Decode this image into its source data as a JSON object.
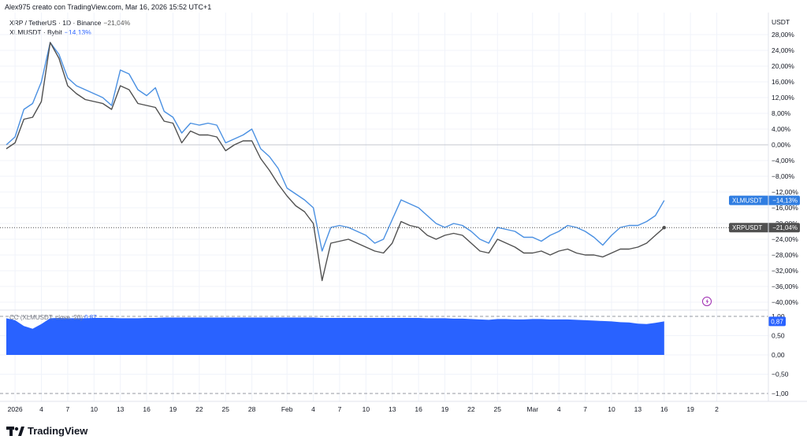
{
  "header": {
    "caption": "Alex975 creato con TradingView.com, Mar 16, 2026 15:52 UTC+1"
  },
  "legend": {
    "items": [
      {
        "symbol": "XRP / TetherUS · 1D · Binance",
        "value": "−21,04%"
      },
      {
        "symbol": "XLMUSDT · Bybit",
        "value": "−14,13%"
      }
    ]
  },
  "axis": {
    "unit": "USDT",
    "y_ticks": [
      "28,00%",
      "24,00%",
      "20,00%",
      "16,00%",
      "12,00%",
      "8,00%",
      "4,00%",
      "0,00%",
      "−4,00%",
      "−8,00%",
      "−12,00%",
      "−16,00%",
      "−20,00%",
      "−24,00%",
      "−28,00%",
      "−32,00%",
      "−36,00%",
      "−40,00%"
    ],
    "x_ticks": [
      "2026",
      "4",
      "7",
      "10",
      "13",
      "16",
      "19",
      "22",
      "25",
      "28",
      "Feb",
      "4",
      "7",
      "10",
      "13",
      "16",
      "19",
      "22",
      "25",
      "Mar",
      "4",
      "7",
      "10",
      "13",
      "16",
      "19",
      "2"
    ],
    "ind_ticks": [
      "1,00",
      "0,50",
      "0,00",
      "−0,50",
      "−1,00"
    ]
  },
  "price_labels": {
    "xlm": {
      "name": "XLMUSDT",
      "value": "−14,13%"
    },
    "xrp": {
      "name": "XRPUSDT",
      "value": "−21,04%"
    }
  },
  "indicator": {
    "label": "CC (XLMUSDT, close, 20)",
    "value": "0,87",
    "badge": "0,87"
  },
  "colors": {
    "xlm": "#4a90e2",
    "xrp": "#505050",
    "cc_fill": "#2962ff",
    "grid": "#f0f3fa"
  },
  "logo": {
    "text": "TradingView"
  },
  "chart_data": [
    {
      "type": "line",
      "x": [
        "Dec 31",
        "Jan 1",
        "Jan 2",
        "Jan 3",
        "Jan 4",
        "Jan 5",
        "Jan 6",
        "Jan 7",
        "Jan 8",
        "Jan 9",
        "Jan 10",
        "Jan 11",
        "Jan 12",
        "Jan 13",
        "Jan 14",
        "Jan 15",
        "Jan 16",
        "Jan 17",
        "Jan 18",
        "Jan 19",
        "Jan 20",
        "Jan 21",
        "Jan 22",
        "Jan 23",
        "Jan 24",
        "Jan 25",
        "Jan 26",
        "Jan 27",
        "Jan 28",
        "Jan 29",
        "Jan 30",
        "Jan 31",
        "Feb 1",
        "Feb 2",
        "Feb 3",
        "Feb 4",
        "Feb 5",
        "Feb 6",
        "Feb 7",
        "Feb 8",
        "Feb 9",
        "Feb 10",
        "Feb 11",
        "Feb 12",
        "Feb 13",
        "Feb 14",
        "Feb 15",
        "Feb 16",
        "Feb 17",
        "Feb 18",
        "Feb 19",
        "Feb 20",
        "Feb 21",
        "Feb 22",
        "Feb 23",
        "Feb 24",
        "Feb 25",
        "Feb 26",
        "Feb 27",
        "Feb 28",
        "Mar 1",
        "Mar 2",
        "Mar 3",
        "Mar 4",
        "Mar 5",
        "Mar 6",
        "Mar 7",
        "Mar 8",
        "Mar 9",
        "Mar 10",
        "Mar 11",
        "Mar 12",
        "Mar 13",
        "Mar 14",
        "Mar 15",
        "Mar 16"
      ],
      "series": [
        {
          "name": "XLMUSDT",
          "values": [
            0,
            2,
            9,
            10.5,
            16,
            26,
            23,
            17,
            15,
            14,
            13,
            12,
            10,
            19,
            18,
            14,
            12.5,
            14.5,
            8.5,
            7,
            3,
            5.5,
            5,
            5.5,
            5,
            0.5,
            1.5,
            2.5,
            4,
            -1,
            -3,
            -6,
            -11,
            -12.5,
            -14,
            -16,
            -27,
            -21,
            -20.5,
            -21,
            -22,
            -23,
            -25,
            -24,
            -19,
            -14,
            -15,
            -16,
            -18,
            -20,
            -21,
            -20,
            -20.5,
            -22,
            -24,
            -25,
            -21,
            -21.5,
            -22,
            -23.5,
            -23.5,
            -24.5,
            -23,
            -22,
            -20.5,
            -21,
            -22,
            -23.5,
            -25.5,
            -23,
            -21,
            -20.5,
            -20.5,
            -19.5,
            -18,
            -14.13
          ]
        },
        {
          "name": "XRPUSDT",
          "values": [
            -1,
            0.5,
            6.5,
            7,
            11,
            26,
            22,
            15,
            13,
            11.5,
            11,
            10.5,
            9,
            15,
            14,
            10.5,
            10,
            9.5,
            6,
            5.5,
            0.5,
            3.5,
            2.5,
            2.5,
            2,
            -1.5,
            0,
            1,
            1,
            -3.5,
            -6.5,
            -10,
            -13,
            -15.5,
            -17,
            -20,
            -34.5,
            -25,
            -24.5,
            -24,
            -25,
            -26,
            -27,
            -27.5,
            -25,
            -19.5,
            -20.5,
            -21,
            -23,
            -24,
            -23,
            -22.5,
            -23,
            -25,
            -27,
            -27.5,
            -24,
            -25,
            -26,
            -27.5,
            -27.5,
            -27,
            -28,
            -27,
            -26.5,
            -27.5,
            -28,
            -28,
            -28.5,
            -27.5,
            -26.5,
            -26.5,
            -26,
            -25,
            -23,
            -21.04
          ]
        }
      ],
      "ylim": [
        -42,
        30
      ],
      "grid": true,
      "legend": "top-left"
    },
    {
      "type": "area",
      "name": "CC (XLMUSDT, close, 20)",
      "values": [
        0.95,
        0.9,
        0.75,
        0.68,
        0.8,
        0.95,
        0.96,
        0.95,
        0.95,
        0.95,
        0.96,
        0.96,
        0.96,
        0.95,
        0.95,
        0.95,
        0.96,
        0.96,
        0.97,
        0.97,
        0.97,
        0.97,
        0.97,
        0.97,
        0.97,
        0.97,
        0.97,
        0.97,
        0.97,
        0.97,
        0.97,
        0.97,
        0.97,
        0.97,
        0.97,
        0.97,
        0.96,
        0.96,
        0.96,
        0.96,
        0.96,
        0.96,
        0.96,
        0.96,
        0.96,
        0.96,
        0.96,
        0.96,
        0.95,
        0.95,
        0.95,
        0.94,
        0.94,
        0.93,
        0.92,
        0.91,
        0.93,
        0.93,
        0.92,
        0.92,
        0.93,
        0.93,
        0.92,
        0.92,
        0.92,
        0.91,
        0.9,
        0.89,
        0.88,
        0.87,
        0.85,
        0.84,
        0.81,
        0.8,
        0.83,
        0.87
      ],
      "ylim": [
        -1.1,
        1.1
      ]
    }
  ]
}
